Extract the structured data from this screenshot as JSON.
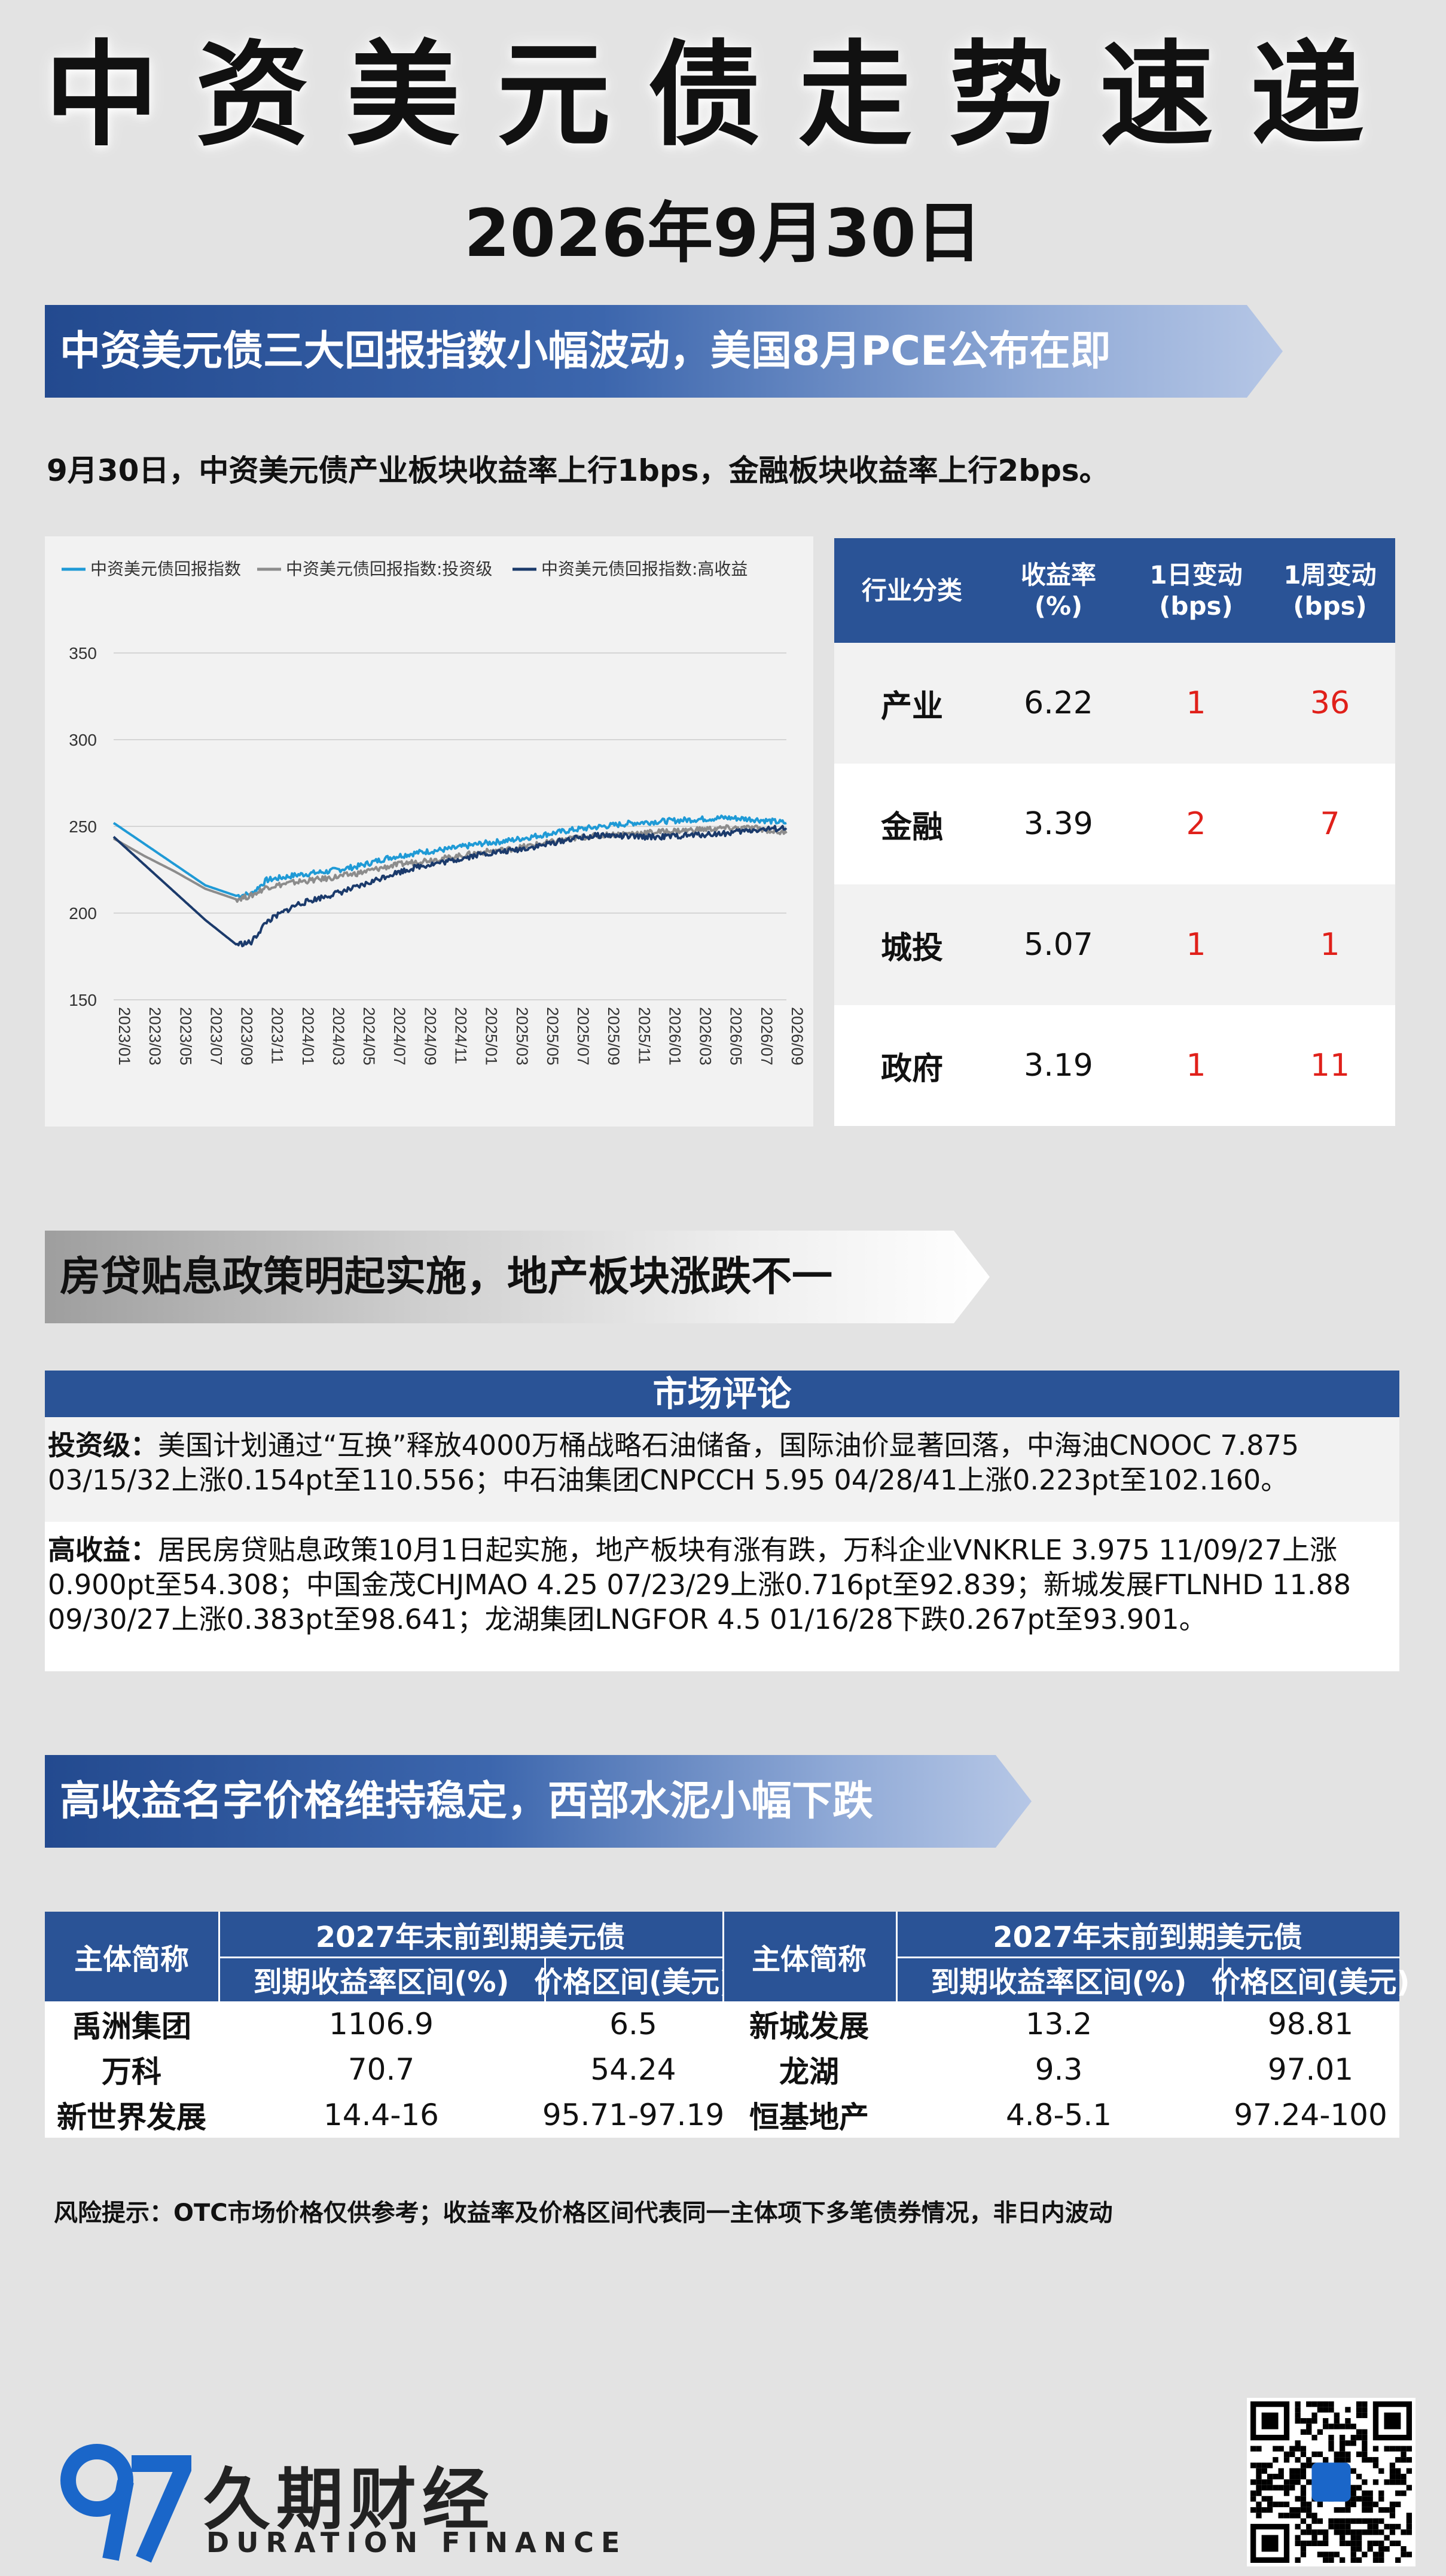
{
  "header": {
    "title": "中资美元债走势速递",
    "date": "2026年9月30日"
  },
  "section1": {
    "banner": "中资美元债三大回报指数小幅波动，美国8月PCE公布在即",
    "summary": "9月30日，中资美元债产业板块收益率上行1bps，金融板块收益率上行2bps。"
  },
  "chart_data": {
    "type": "line",
    "title": "",
    "legend_position": "top",
    "series": [
      {
        "name": "中资美元债回报指数",
        "color": "#1f9ad6",
        "x": [
          "2023/01",
          "2023/03",
          "2023/05",
          "2023/07",
          "2023/09",
          "2023/10",
          "2023/11",
          "2024/01",
          "2024/03",
          "2024/05",
          "2024/07",
          "2024/09",
          "2024/11",
          "2025/01",
          "2025/03",
          "2025/05",
          "2025/07",
          "2025/09",
          "2025/11",
          "2026/01",
          "2026/03",
          "2026/05",
          "2026/07",
          "2026/09"
        ],
        "values": [
          252,
          240,
          228,
          216,
          210,
          211,
          219,
          222,
          224,
          227,
          232,
          235,
          237,
          240,
          242,
          245,
          248,
          250,
          252,
          253,
          254,
          255,
          254,
          252
        ]
      },
      {
        "name": "中资美元债回报指数:投资级",
        "color": "#8c8c8c",
        "x": [
          "2023/01",
          "2023/03",
          "2023/05",
          "2023/07",
          "2023/09",
          "2023/10",
          "2023/11",
          "2024/01",
          "2024/03",
          "2024/05",
          "2024/07",
          "2024/09",
          "2024/11",
          "2025/01",
          "2025/03",
          "2025/05",
          "2025/07",
          "2025/09",
          "2025/11",
          "2026/01",
          "2026/03",
          "2026/05",
          "2026/07",
          "2026/09"
        ],
        "values": [
          243,
          233,
          224,
          214,
          208,
          210,
          215,
          218,
          220,
          223,
          227,
          230,
          232,
          235,
          237,
          240,
          243,
          245,
          246,
          247,
          248,
          249,
          249,
          246
        ]
      },
      {
        "name": "中资美元债回报指数:高收益",
        "color": "#1b3a6b",
        "x": [
          "2023/01",
          "2023/03",
          "2023/05",
          "2023/07",
          "2023/09",
          "2023/10",
          "2023/11",
          "2024/01",
          "2024/03",
          "2024/05",
          "2024/07",
          "2024/09",
          "2024/11",
          "2025/01",
          "2025/03",
          "2025/05",
          "2025/07",
          "2025/09",
          "2025/11",
          "2026/01",
          "2026/03",
          "2026/05",
          "2026/07",
          "2026/09"
        ],
        "values": [
          244,
          228,
          212,
          196,
          182,
          183,
          195,
          205,
          210,
          215,
          222,
          227,
          230,
          234,
          236,
          239,
          243,
          245,
          244,
          244,
          245,
          246,
          248,
          249
        ]
      }
    ],
    "ylim": [
      150,
      350
    ],
    "yticks": [
      150,
      200,
      250,
      300,
      350
    ],
    "xticks": [
      "2023/01",
      "2023/03",
      "2023/05",
      "2023/07",
      "2023/09",
      "2023/11",
      "2024/01",
      "2024/03",
      "2024/05",
      "2024/07",
      "2024/09",
      "2024/11",
      "2025/01",
      "2025/03",
      "2025/05",
      "2025/07",
      "2025/09",
      "2025/11",
      "2026/01",
      "2026/03",
      "2026/05",
      "2026/07",
      "2026/09"
    ],
    "grid": true
  },
  "yield_table": {
    "headers": [
      "行业分类",
      "收益率\n(%)",
      "1日变动\n(bps)",
      "1周变动\n(bps)"
    ],
    "rows": [
      {
        "category": "产业",
        "yield": "6.22",
        "d1": "1",
        "w1": "36"
      },
      {
        "category": "金融",
        "yield": "3.39",
        "d1": "2",
        "w1": "7"
      },
      {
        "category": "城投",
        "yield": "5.07",
        "d1": "1",
        "w1": "1"
      },
      {
        "category": "政府",
        "yield": "3.19",
        "d1": "1",
        "w1": "11"
      }
    ],
    "colors": {
      "header": "#2a5396",
      "odd_row": "#f2f2f2",
      "even_row": "#ffffff",
      "positive": "#e0201a"
    }
  },
  "section2": {
    "banner": "房贷贴息政策明起实施，地产板块涨跌不一",
    "commentary_title": "市场评论",
    "ig_label": "投资级：",
    "ig_text": "美国计划通过“互换”释放4000万桶战略石油储备，国际油价显著回落，中海油CNOOC 7.875 03/15/32上涨0.154pt至110.556；中石油集团CNPCCH 5.95 04/28/41上涨0.223pt至102.160。",
    "hy_label": "高收益：",
    "hy_text": "居民房贷贴息政策10月1日起实施，地产板块有涨有跌，万科企业VNKRLE 3.975 11/09/27上涨0.900pt至54.308；中国金茂CHJMAO 4.25 07/23/29上涨0.716pt至92.839；新城发展FTLNHD 11.88 09/30/27上涨0.383pt至98.641；龙湖集团LNGFOR 4.5 01/16/28下跌0.267pt至93.901。"
  },
  "section3": {
    "banner": "高收益名字价格维持稳定，西部水泥小幅下跌",
    "table_headers": {
      "entity": "主体简称",
      "group": "2027年末前到期美元债",
      "yield_range": "到期收益率区间(%)",
      "price_range": "价格区间(美元)"
    },
    "left_rows": [
      {
        "name": "禹洲集团",
        "yield": "1106.9",
        "price": "6.5"
      },
      {
        "name": "万科",
        "yield": "70.7",
        "price": "54.24"
      },
      {
        "name": "新世界发展",
        "yield": "14.4-16",
        "price": "95.71-97.19"
      }
    ],
    "right_rows": [
      {
        "name": "新城发展",
        "yield": "13.2",
        "price": "98.81"
      },
      {
        "name": "龙湖",
        "yield": "9.3",
        "price": "97.01"
      },
      {
        "name": "恒基地产",
        "yield": "4.8-5.1",
        "price": "97.24-100"
      }
    ]
  },
  "risk_note": "风险提示：OTC市场价格仅供参考；收益率及价格区间代表同一主体项下多笔债券情况，非日内波动",
  "footer": {
    "brand_cn": "久期财经",
    "brand_en": "DURATION FINANCE",
    "logo_text": "97",
    "brand_color": "#1a66c9"
  }
}
